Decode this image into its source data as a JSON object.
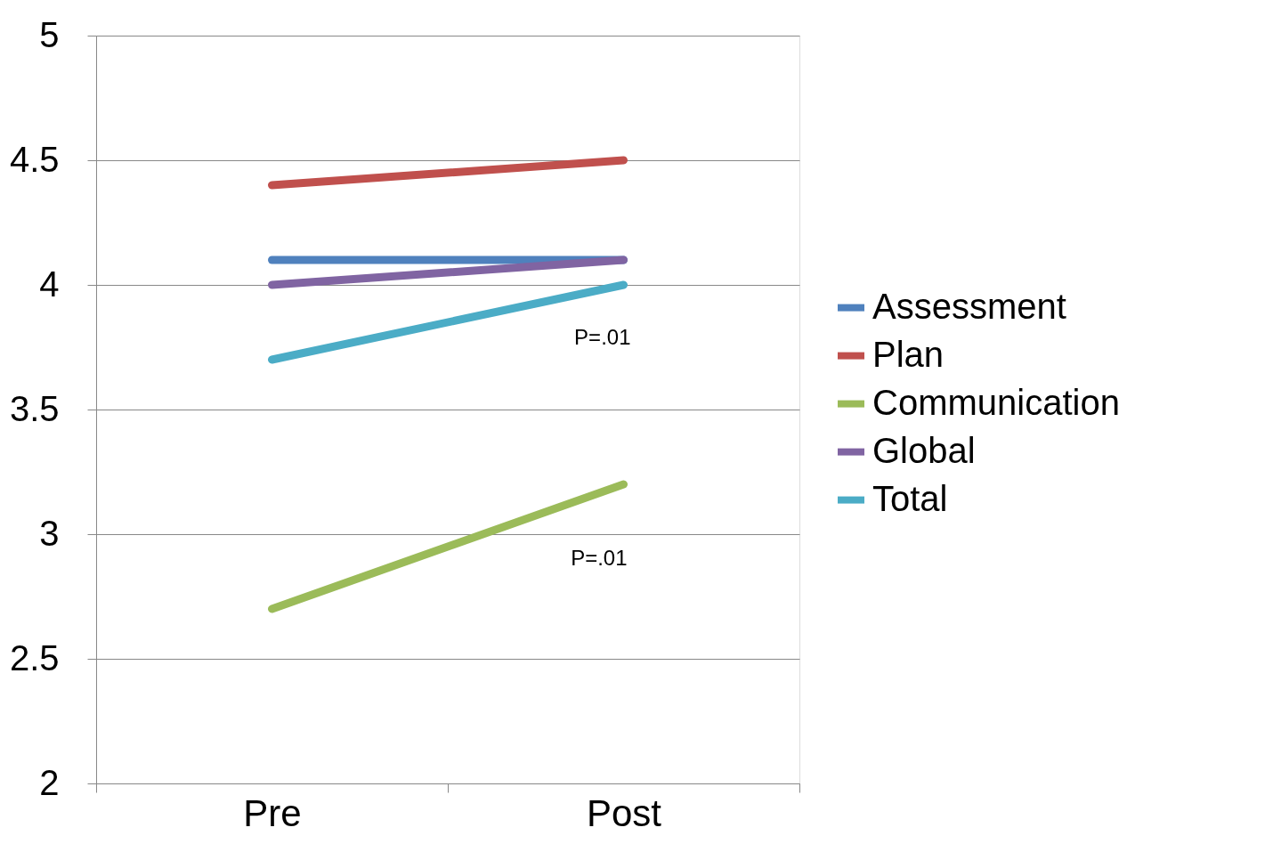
{
  "chart_data": {
    "type": "line",
    "categories": [
      "Pre",
      "Post"
    ],
    "series": [
      {
        "name": "Assessment",
        "color": "#4f81bd",
        "values": [
          4.1,
          4.1
        ]
      },
      {
        "name": "Plan",
        "color": "#c0504d",
        "values": [
          4.4,
          4.5
        ]
      },
      {
        "name": "Communication",
        "color": "#9bbb59",
        "values": [
          2.7,
          3.2
        ]
      },
      {
        "name": "Global",
        "color": "#8064a2",
        "values": [
          4.0,
          4.1
        ]
      },
      {
        "name": "Total",
        "color": "#4bacc6",
        "values": [
          3.7,
          4.0
        ]
      }
    ],
    "ylim": [
      2,
      5
    ],
    "yticks": [
      2,
      2.5,
      3,
      3.5,
      4,
      4.5,
      5
    ],
    "grid": "y",
    "legend": "right",
    "marker": "none",
    "line_style": "solid",
    "annotations": [
      "P=.01",
      "P=.01"
    ]
  }
}
